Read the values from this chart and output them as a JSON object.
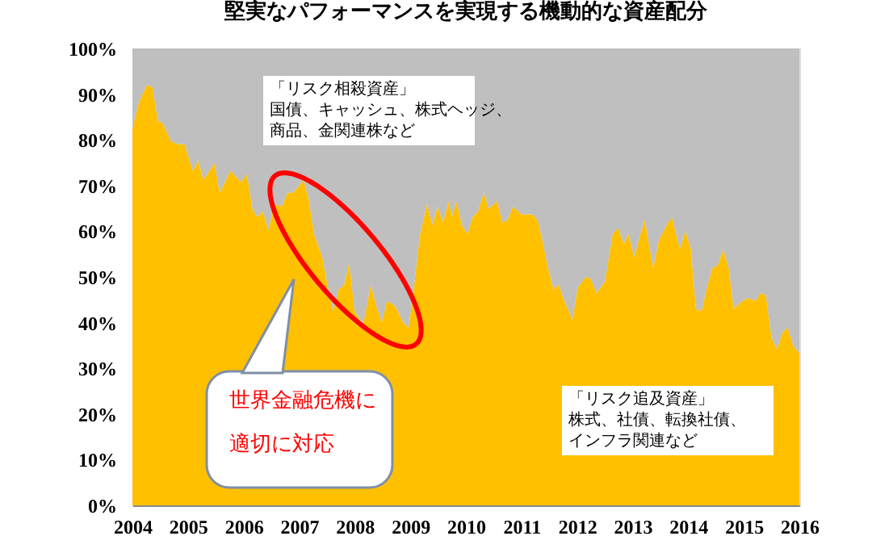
{
  "chart_data": {
    "type": "area",
    "stacked": true,
    "title": "堅実なパフォーマンスを実現する機動的な資産配分",
    "x": [
      2004.0,
      2004.12,
      2004.26,
      2004.36,
      2004.46,
      2004.55,
      2004.7,
      2004.84,
      2004.94,
      2005.09,
      2005.18,
      2005.28,
      2005.48,
      2005.57,
      2005.77,
      2005.86,
      2005.96,
      2006.06,
      2006.16,
      2006.25,
      2006.35,
      2006.45,
      2006.54,
      2006.69,
      2006.79,
      2006.88,
      2006.98,
      2007.08,
      2007.17,
      2007.27,
      2007.42,
      2007.51,
      2007.61,
      2007.71,
      2007.81,
      2007.9,
      2008.0,
      2008.15,
      2008.29,
      2008.39,
      2008.49,
      2008.58,
      2008.73,
      2008.87,
      2008.97,
      2009.07,
      2009.17,
      2009.3,
      2009.4,
      2009.49,
      2009.59,
      2009.69,
      2009.75,
      2009.83,
      2009.93,
      2010.03,
      2010.12,
      2010.22,
      2010.32,
      2010.41,
      2010.56,
      2010.66,
      2010.75,
      2010.85,
      2011.0,
      2011.19,
      2011.29,
      2011.38,
      2011.48,
      2011.58,
      2011.67,
      2011.77,
      2011.92,
      2012.01,
      2012.16,
      2012.25,
      2012.35,
      2012.5,
      2012.64,
      2012.74,
      2012.84,
      2012.93,
      2013.03,
      2013.13,
      2013.22,
      2013.37,
      2013.47,
      2013.61,
      2013.71,
      2013.85,
      2013.95,
      2014.05,
      2014.14,
      2014.24,
      2014.34,
      2014.43,
      2014.53,
      2014.63,
      2014.73,
      2014.82,
      2014.92,
      2015.07,
      2015.21,
      2015.31,
      2015.4,
      2015.5,
      2015.6,
      2015.69,
      2015.79,
      2015.89,
      2016.0
    ],
    "series": [
      {
        "color": "#ffc000",
        "values": [
          82.5,
          88.4,
          92.0,
          91.5,
          84.2,
          83.6,
          79.6,
          79.0,
          79.0,
          73.1,
          75.5,
          71.3,
          74.9,
          68.4,
          73.3,
          71.9,
          70.8,
          72.5,
          64.9,
          63.1,
          64.3,
          60.1,
          66.0,
          65.4,
          68.4,
          68.4,
          69.6,
          71.3,
          67.2,
          59.4,
          54.2,
          48.3,
          42.5,
          47.2,
          48.3,
          53.1,
          42.5,
          39.5,
          48.3,
          43.6,
          40.1,
          44.8,
          43.6,
          40.1,
          38.9,
          48.3,
          59.0,
          66.0,
          61.3,
          65.4,
          61.9,
          66.6,
          63.1,
          66.6,
          61.3,
          59.4,
          63.1,
          64.3,
          68.4,
          64.9,
          66.6,
          61.9,
          62.5,
          65.4,
          63.7,
          63.7,
          62.5,
          57.8,
          51.9,
          47.2,
          48.3,
          44.8,
          40.7,
          47.6,
          50.1,
          49.5,
          46.5,
          48.9,
          59.4,
          60.7,
          57.2,
          59.4,
          54.2,
          59.0,
          62.5,
          51.9,
          58.0,
          61.3,
          63.1,
          56.0,
          60.1,
          56.0,
          43.0,
          42.5,
          47.8,
          51.9,
          52.5,
          56.0,
          51.9,
          43.0,
          44.2,
          45.4,
          44.8,
          46.5,
          45.9,
          36.6,
          34.2,
          37.7,
          39.0,
          34.9,
          33.3
        ]
      },
      {
        "color": "#bfbfbf",
        "values": [
          17.5,
          11.6,
          8.0,
          8.5,
          15.8,
          16.4,
          20.4,
          21.0,
          21.0,
          26.9,
          24.5,
          28.7,
          25.1,
          31.6,
          26.7,
          28.1,
          29.2,
          27.5,
          35.1,
          36.9,
          35.7,
          39.9,
          34.0,
          34.6,
          31.6,
          31.6,
          30.4,
          28.7,
          32.8,
          40.6,
          45.8,
          51.7,
          57.5,
          52.8,
          51.7,
          46.9,
          57.5,
          60.5,
          51.7,
          56.4,
          59.9,
          55.2,
          56.4,
          59.9,
          61.1,
          51.7,
          41.0,
          34.0,
          38.7,
          34.6,
          38.1,
          33.4,
          36.9,
          33.4,
          38.7,
          40.6,
          36.9,
          35.7,
          31.6,
          35.1,
          33.4,
          38.1,
          37.5,
          34.6,
          36.3,
          36.3,
          37.5,
          42.2,
          48.1,
          52.8,
          51.7,
          55.2,
          59.3,
          52.4,
          49.9,
          50.5,
          53.5,
          51.1,
          40.6,
          39.3,
          42.8,
          40.6,
          45.8,
          41.0,
          37.5,
          48.1,
          42.0,
          38.7,
          36.9,
          44.0,
          39.9,
          44.0,
          57.0,
          57.5,
          52.2,
          48.1,
          47.5,
          44.0,
          48.1,
          57.0,
          55.8,
          54.6,
          55.2,
          53.5,
          54.1,
          63.4,
          65.8,
          62.3,
          61.0,
          65.1,
          66.7
        ]
      }
    ],
    "xlim": [
      2004,
      2016
    ],
    "xticks": [
      2004,
      2005,
      2006,
      2007,
      2008,
      2009,
      2010,
      2011,
      2012,
      2013,
      2014,
      2015,
      2016
    ],
    "ylim": [
      0,
      100
    ],
    "yticks": [
      {
        "value": 0,
        "label": "0%"
      },
      {
        "value": 10,
        "label": "10%"
      },
      {
        "value": 20,
        "label": "20%"
      },
      {
        "value": 30,
        "label": "30%"
      },
      {
        "value": 40,
        "label": "40%"
      },
      {
        "value": 50,
        "label": "50%"
      },
      {
        "value": 60,
        "label": "60%"
      },
      {
        "value": 70,
        "label": "70%"
      },
      {
        "value": 80,
        "label": "80%"
      },
      {
        "value": 90,
        "label": "90%"
      },
      {
        "value": 100,
        "label": "100%"
      }
    ],
    "annotations": [
      "「リスク相殺資産」",
      "国債、キャッシュ、株式ヘッジ、",
      "商品、金関連株など",
      "「リスク追及資産」",
      "株式、社債、転換社債、",
      "インフラ関連など",
      "世界金融危機に",
      "適切に対応"
    ]
  }
}
